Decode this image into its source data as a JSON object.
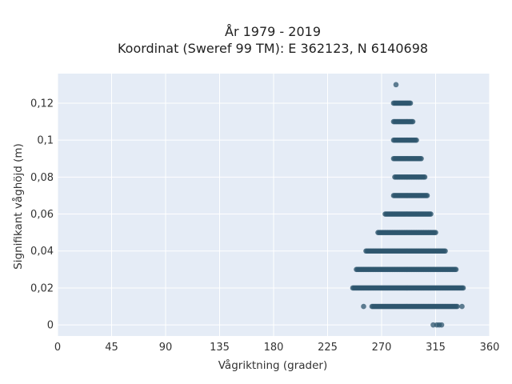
{
  "chart_data": {
    "type": "scatter",
    "title": "År 1979 - 2019",
    "subtitle": "Koordinat (Sweref 99 TM): E 362123, N 6140698",
    "xlabel": "Vågriktning (grader)",
    "ylabel": "Signifikant våghöjd (m)",
    "xlim": [
      0,
      360
    ],
    "ylim": [
      -0.006,
      0.136
    ],
    "xticks": [
      0,
      45,
      90,
      135,
      180,
      225,
      270,
      315,
      360
    ],
    "xtick_labels": [
      "0",
      "45",
      "90",
      "135",
      "180",
      "225",
      "270",
      "315",
      "360"
    ],
    "yticks": [
      0,
      0.02,
      0.04,
      0.06,
      0.08,
      0.1,
      0.12
    ],
    "ytick_labels": [
      "0",
      "0,02",
      "0,04",
      "0,06",
      "0,08",
      "0,1",
      "0,12"
    ],
    "grid": true,
    "plot_background": "#e5ecf6",
    "marker_color": "#2e566e",
    "band_step_deg": 1,
    "bands": [
      {
        "y": 0.12,
        "x_range": [
          280,
          294
        ]
      },
      {
        "y": 0.11,
        "x_range": [
          280,
          296
        ]
      },
      {
        "y": 0.1,
        "x_range": [
          280,
          299
        ]
      },
      {
        "y": 0.09,
        "x_range": [
          280,
          303
        ]
      },
      {
        "y": 0.08,
        "x_range": [
          281,
          306
        ]
      },
      {
        "y": 0.07,
        "x_range": [
          280,
          308
        ]
      },
      {
        "y": 0.06,
        "x_range": [
          273,
          311
        ]
      },
      {
        "y": 0.05,
        "x_range": [
          267,
          315
        ]
      },
      {
        "y": 0.04,
        "x_range": [
          257,
          323
        ]
      },
      {
        "y": 0.03,
        "x_range": [
          249,
          332
        ]
      },
      {
        "y": 0.02,
        "x_range": [
          246,
          338
        ]
      },
      {
        "y": 0.01,
        "x_range": [
          262,
          333
        ]
      }
    ],
    "outliers": [
      {
        "x": 282,
        "y": 0.13
      },
      {
        "x": 255,
        "y": 0.01
      },
      {
        "x": 337,
        "y": 0.01
      },
      {
        "x": 313,
        "y": 0.0
      },
      {
        "x": 316,
        "y": 0.0
      },
      {
        "x": 318,
        "y": 0.0
      },
      {
        "x": 320,
        "y": 0.0
      }
    ]
  }
}
